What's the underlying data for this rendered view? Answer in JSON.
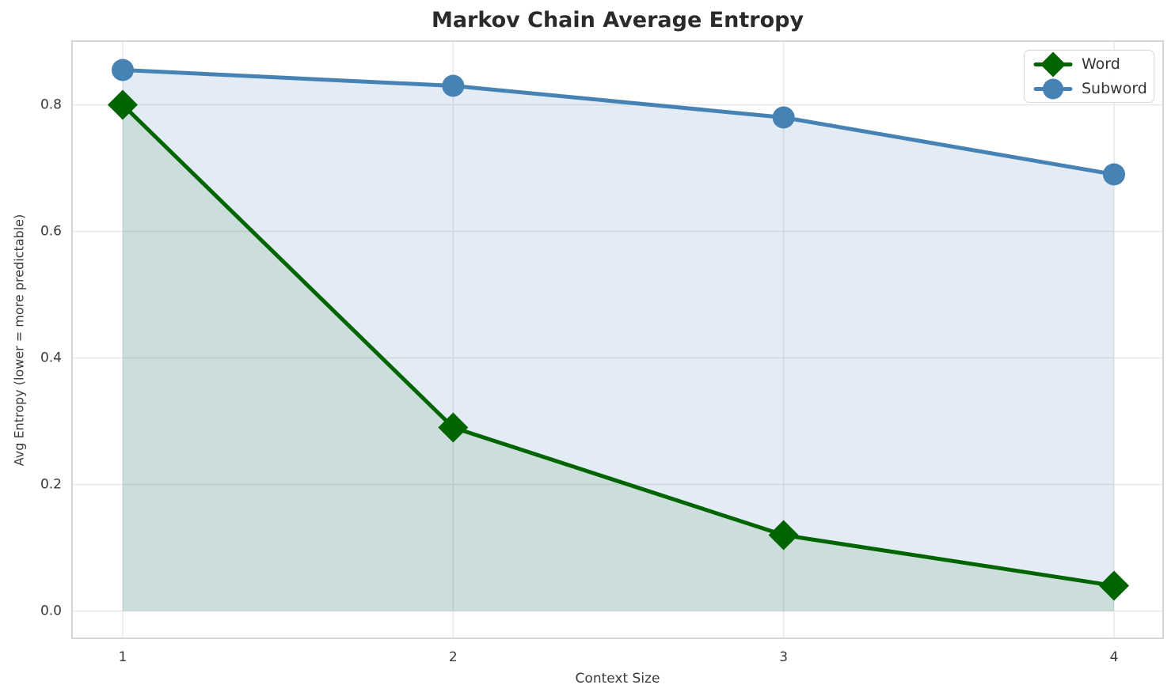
{
  "title": "Markov Chain Average Entropy",
  "chart_data": {
    "type": "line",
    "title": "Markov Chain Average Entropy",
    "xlabel": "Context Size",
    "ylabel": "Avg Entropy (lower = more predictable)",
    "x": [
      1,
      2,
      3,
      4
    ],
    "series": [
      {
        "name": "Word",
        "values": [
          0.8,
          0.29,
          0.12,
          0.04
        ],
        "color": "#006400",
        "fill_color": "rgba(0,100,0,0.10)",
        "marker": "diamond",
        "fill_to_zero": true
      },
      {
        "name": "Subword",
        "values": [
          0.855,
          0.83,
          0.78,
          0.69
        ],
        "color": "#4682b4",
        "fill_color": "rgba(70,130,180,0.15)",
        "marker": "circle",
        "fill_to_zero": true
      }
    ],
    "xticks": {
      "values": [
        1,
        2,
        3,
        4
      ],
      "labels": [
        "1",
        "2",
        "3",
        "4"
      ]
    },
    "yticks": {
      "values": [
        0,
        0.2,
        0.4,
        0.6,
        0.8
      ],
      "labels": [
        "0.0",
        "0.2",
        "0.4",
        "0.6",
        "0.8"
      ]
    },
    "ylim": [
      -0.043,
      0.9
    ],
    "grid": true,
    "grid_color": "#e8e8e8",
    "spine_color": "#d6d6d6",
    "tick_label_color": "#3a3a3a",
    "legend_position": "upper right"
  }
}
